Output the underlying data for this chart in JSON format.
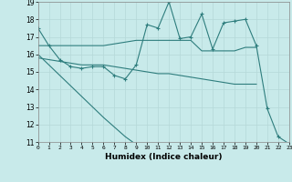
{
  "xlabel": "Humidex (Indice chaleur)",
  "xlim": [
    0,
    23
  ],
  "ylim": [
    11,
    19
  ],
  "yticks": [
    11,
    12,
    13,
    14,
    15,
    16,
    17,
    18,
    19
  ],
  "xticks": [
    0,
    1,
    2,
    3,
    4,
    5,
    6,
    7,
    8,
    9,
    10,
    11,
    12,
    13,
    14,
    15,
    16,
    17,
    18,
    19,
    20,
    21,
    22,
    23
  ],
  "bg_color": "#c8eaea",
  "grid_color": "#b5d8d8",
  "line_color": "#2e7d7d",
  "line1_y": [
    17.5,
    16.5,
    15.7,
    15.3,
    15.2,
    15.3,
    15.3,
    14.8,
    14.6,
    15.4,
    17.7,
    17.5,
    19.0,
    16.9,
    17.0,
    18.3,
    16.3,
    17.8,
    17.9,
    18.0,
    16.5,
    12.9,
    11.3,
    10.9
  ],
  "line2_y": [
    16.5,
    16.5,
    16.5,
    16.5,
    16.5,
    16.5,
    16.5,
    16.6,
    16.7,
    16.8,
    16.8,
    16.8,
    16.8,
    16.8,
    16.8,
    16.2,
    16.2,
    16.2,
    16.2,
    16.4,
    16.4,
    null,
    null,
    null
  ],
  "line3_y": [
    15.8,
    15.7,
    15.6,
    15.5,
    15.4,
    15.4,
    15.4,
    15.3,
    15.2,
    15.1,
    15.0,
    14.9,
    14.9,
    14.8,
    14.7,
    14.6,
    14.5,
    14.4,
    14.3,
    14.3,
    14.3,
    null,
    null,
    null
  ],
  "line4_y": [
    16.0,
    15.4,
    14.8,
    14.2,
    13.6,
    13.0,
    12.4,
    11.85,
    11.3,
    10.85,
    null,
    null,
    null,
    null,
    null,
    null,
    null,
    null,
    null,
    null,
    null,
    null,
    null,
    null
  ],
  "lw": 0.8,
  "ms": 3.5
}
